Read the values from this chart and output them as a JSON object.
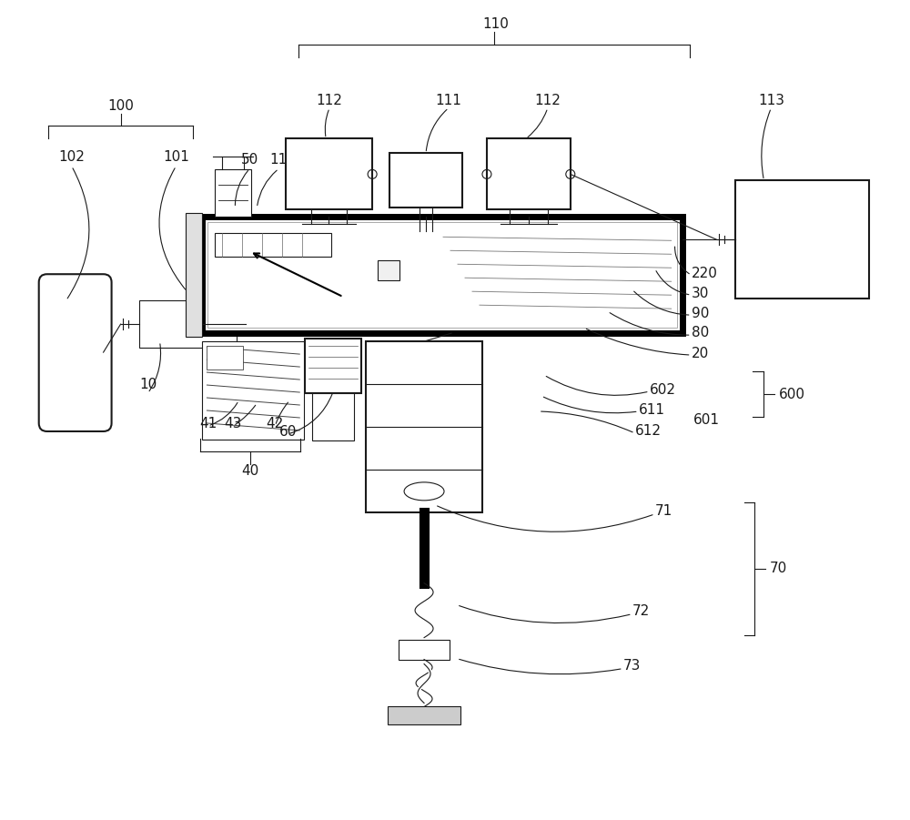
{
  "bg_color": "#ffffff",
  "line_color": "#1a1a1a",
  "figsize": [
    10.0,
    9.01
  ],
  "dpi": 100
}
